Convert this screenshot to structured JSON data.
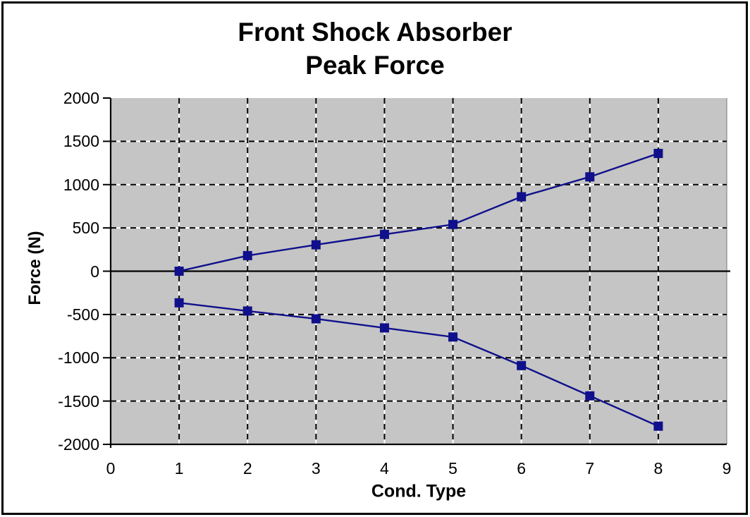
{
  "chart_data": {
    "type": "line",
    "title_lines": [
      "Front Shock Absorber",
      "Peak Force"
    ],
    "xlabel": "Cond. Type",
    "ylabel": "Force (N)",
    "xlim": [
      0,
      9
    ],
    "ylim": [
      -2000,
      2000
    ],
    "x_ticks": [
      0,
      1,
      2,
      3,
      4,
      5,
      6,
      7,
      8,
      9
    ],
    "y_ticks": [
      2000,
      1500,
      1000,
      500,
      0,
      -500,
      -1000,
      -1500,
      -2000
    ],
    "grid": "dashed-black-white-major-grid",
    "legend": "none",
    "marker": "square",
    "x": [
      1,
      2,
      3,
      4,
      5,
      6,
      7,
      8
    ],
    "series": [
      {
        "name": "series-1-upper",
        "values": [
          0,
          180,
          305,
          425,
          540,
          860,
          1090,
          1360
        ]
      },
      {
        "name": "series-2-lower",
        "values": [
          -365,
          -460,
          -550,
          -655,
          -760,
          -1090,
          -1440,
          -1790
        ]
      }
    ],
    "colors": {
      "series_line": "#10108c",
      "plot_background": "#c5c5c5",
      "grid_dash_dark": "#000000",
      "grid_dash_light": "#ffffff",
      "axis": "#000000",
      "text": "#000000",
      "frame_border": "#000000",
      "background": "#ffffff"
    }
  }
}
